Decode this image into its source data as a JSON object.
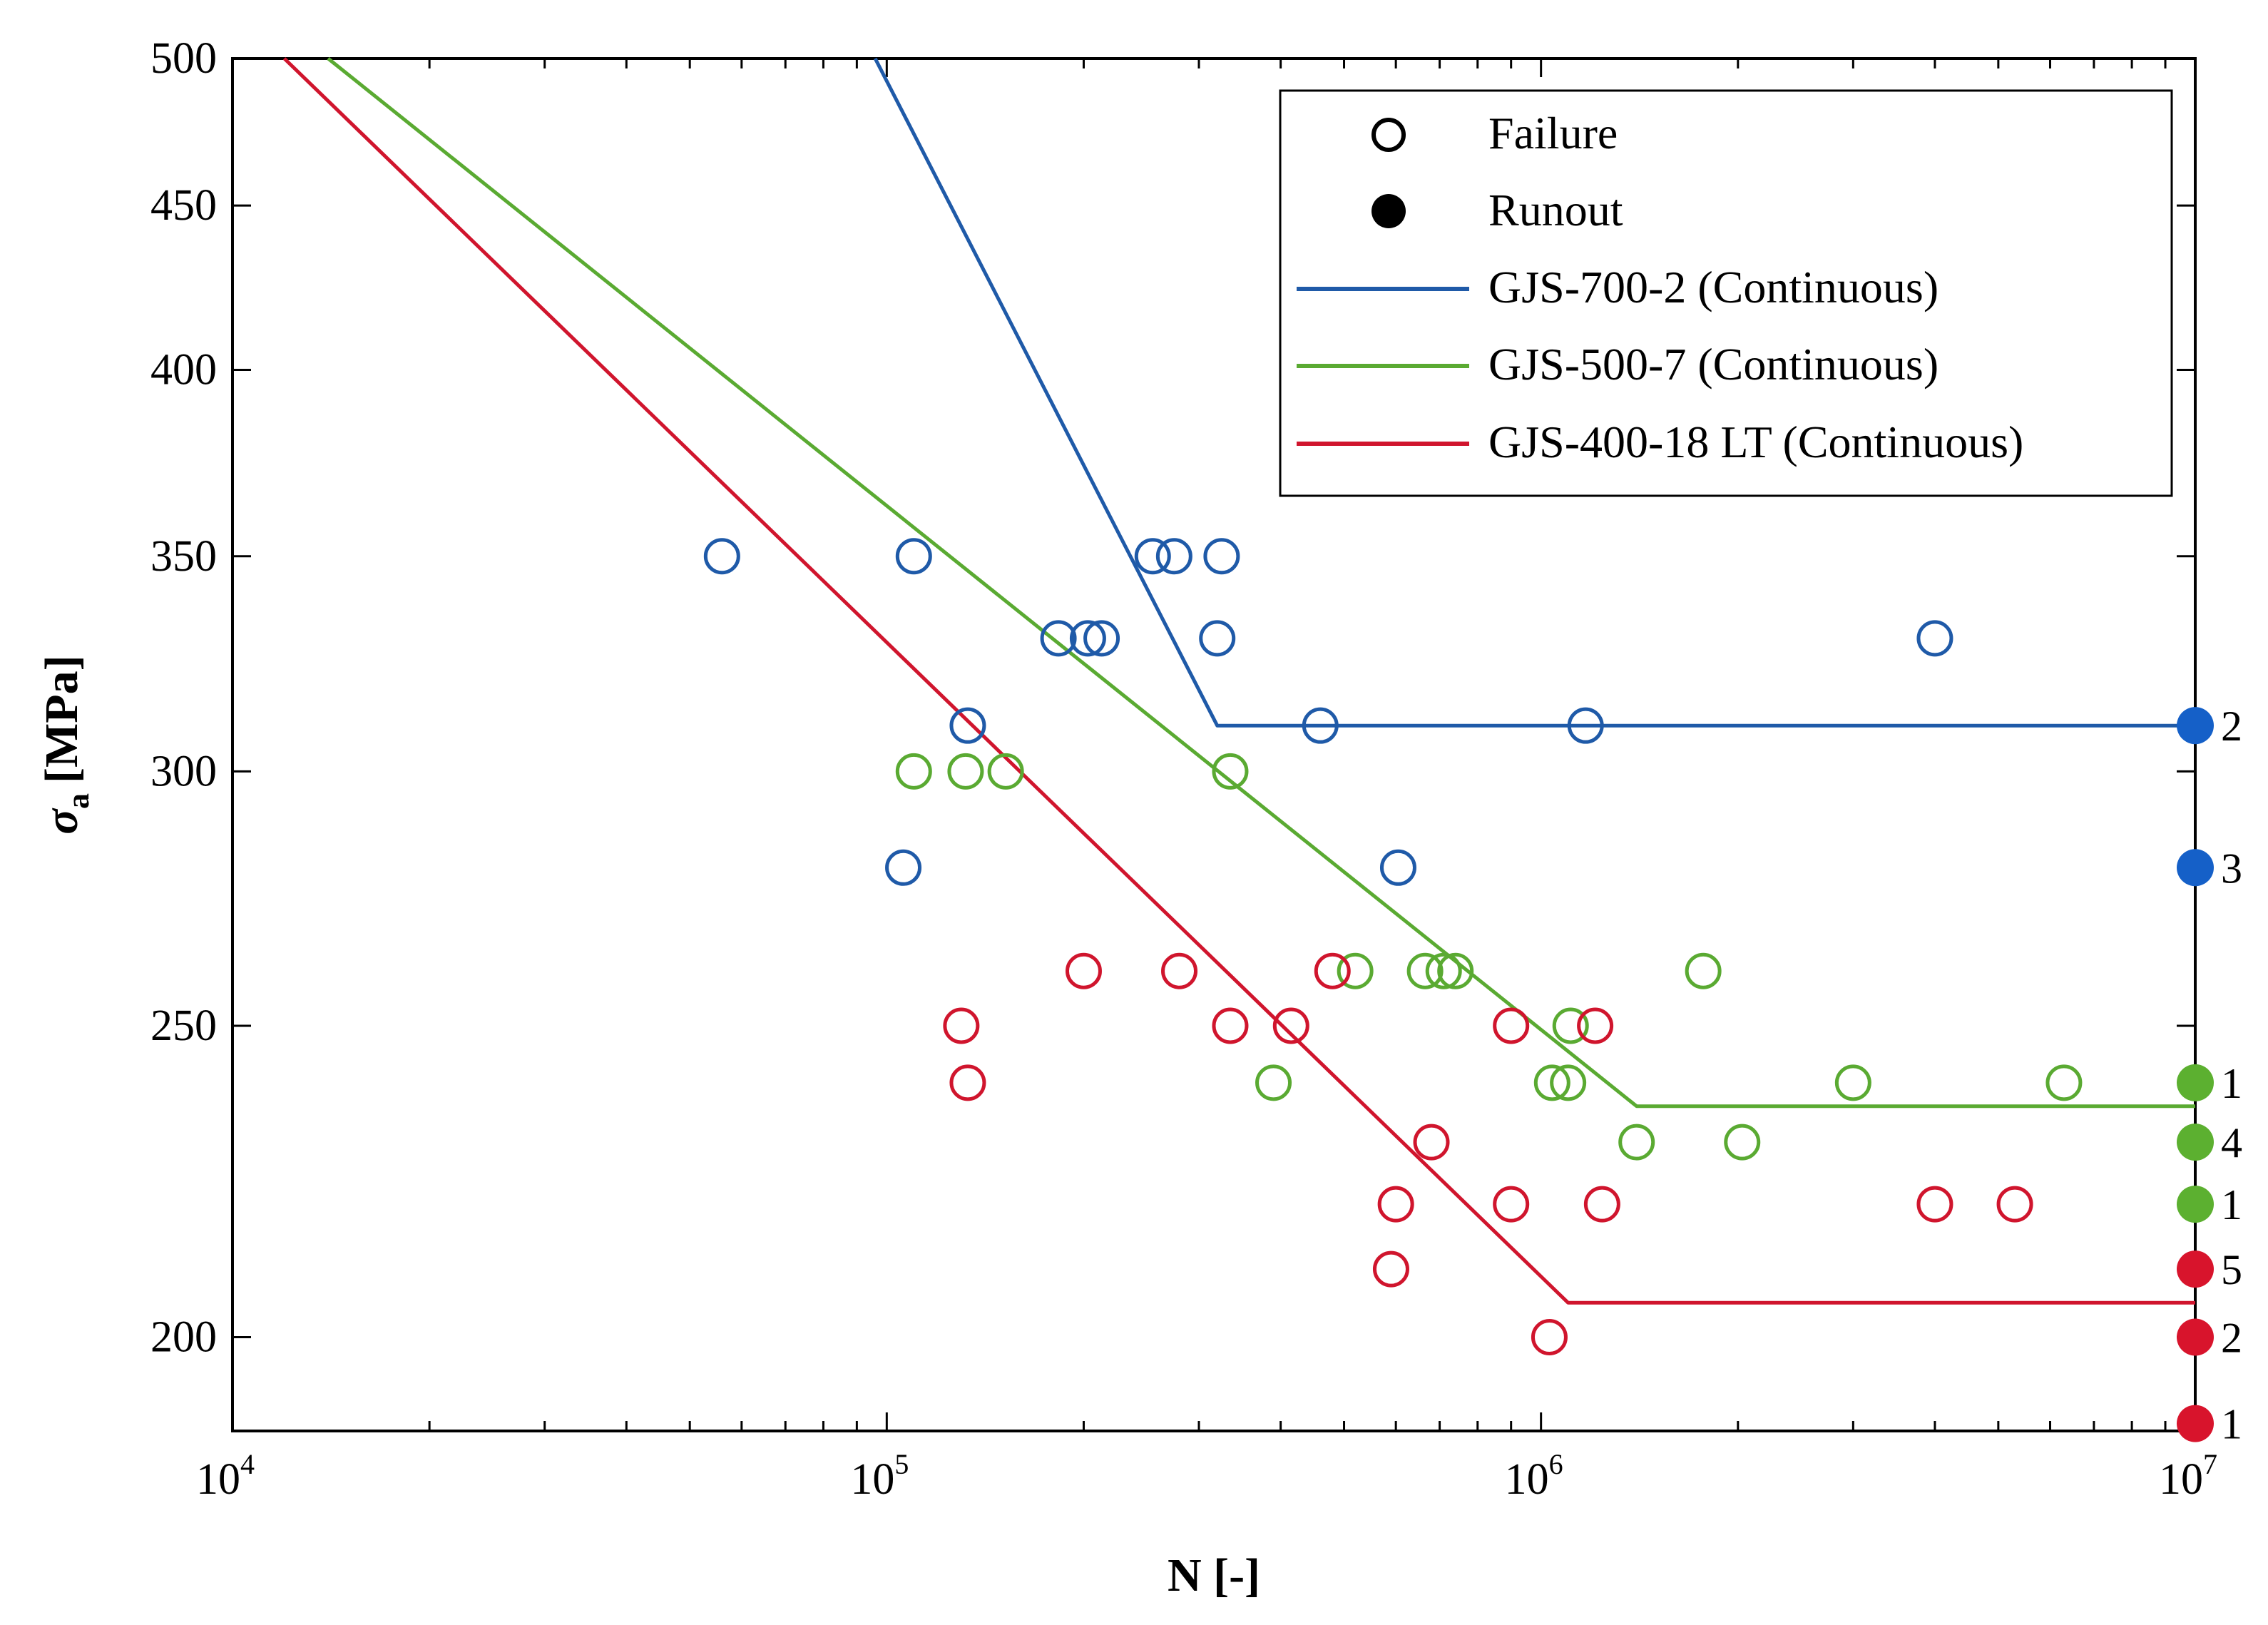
{
  "chart_data": {
    "type": "scatter",
    "xscale": "log",
    "yscale": "log",
    "xlabel": "N [-]",
    "ylabel_symbol": "σ",
    "ylabel_sub": "a",
    "ylabel_unit": "[MPa]",
    "xlim": [
      10000,
      10000000
    ],
    "ylim": [
      187,
      500
    ],
    "x_ticks": [
      {
        "value": 10000,
        "base": "10",
        "exp": "4"
      },
      {
        "value": 100000,
        "base": "10",
        "exp": "5"
      },
      {
        "value": 1000000,
        "base": "10",
        "exp": "6"
      },
      {
        "value": 10000000,
        "base": "10",
        "exp": "7"
      }
    ],
    "y_ticks": [
      {
        "value": 200,
        "label": "200"
      },
      {
        "value": 250,
        "label": "250"
      },
      {
        "value": 300,
        "label": "300"
      },
      {
        "value": 350,
        "label": "350"
      },
      {
        "value": 400,
        "label": "400"
      },
      {
        "value": 450,
        "label": "450"
      },
      {
        "value": 500,
        "label": "500"
      }
    ],
    "legend": {
      "position": "top-right",
      "entries": [
        {
          "marker": "open-circle",
          "label": "Failure"
        },
        {
          "marker": "filled-circle",
          "label": "Runout"
        },
        {
          "marker": "line",
          "color": "#1f5aa8",
          "label": "GJS-700-2 (Continuous)"
        },
        {
          "marker": "line",
          "color": "#5aaa32",
          "label": "GJS-500-7 (Continuous)"
        },
        {
          "marker": "line",
          "color": "#d0152d",
          "label": "GJS-400-18 LT (Continuous)"
        }
      ]
    },
    "series": [
      {
        "name": "GJS-700-2",
        "color": "#1f5aa8",
        "runout_color": "#1560c8",
        "line": [
          [
            96000,
            500
          ],
          [
            320000,
            310
          ],
          [
            10000000,
            310
          ]
        ],
        "failures": [
          [
            56000,
            350
          ],
          [
            110000,
            350
          ],
          [
            255000,
            350
          ],
          [
            275000,
            350
          ],
          [
            325000,
            350
          ],
          [
            183000,
            330
          ],
          [
            203000,
            330
          ],
          [
            213000,
            330
          ],
          [
            320000,
            330
          ],
          [
            4000000,
            330
          ],
          [
            133000,
            310
          ],
          [
            460000,
            310
          ],
          [
            1170000,
            310
          ],
          [
            106000,
            280
          ],
          [
            605000,
            280
          ]
        ],
        "runouts": [
          {
            "y": 310,
            "count": "2"
          },
          {
            "y": 280,
            "count": "3"
          }
        ]
      },
      {
        "name": "GJS-500-7",
        "color": "#5aaa32",
        "runout_color": "#5cb030",
        "line": [
          [
            14000,
            500
          ],
          [
            1400000,
            236
          ],
          [
            10000000,
            236
          ]
        ],
        "failures": [
          [
            110000,
            300
          ],
          [
            132000,
            300
          ],
          [
            152000,
            300
          ],
          [
            335000,
            300
          ],
          [
            520000,
            260
          ],
          [
            665000,
            260
          ],
          [
            710000,
            260
          ],
          [
            740000,
            260
          ],
          [
            1770000,
            260
          ],
          [
            1110000,
            250
          ],
          [
            390000,
            240
          ],
          [
            1040000,
            240
          ],
          [
            1100000,
            240
          ],
          [
            3000000,
            240
          ],
          [
            6300000,
            240
          ],
          [
            1400000,
            230
          ],
          [
            2030000,
            230
          ]
        ],
        "runouts": [
          {
            "y": 240,
            "count": "1"
          },
          {
            "y": 230,
            "count": "4"
          },
          {
            "y": 220,
            "count": "1"
          }
        ]
      },
      {
        "name": "GJS-400-18 LT",
        "color": "#d0152d",
        "runout_color": "#d8142c",
        "line": [
          [
            12000,
            500
          ],
          [
            1100000,
            205
          ],
          [
            10000000,
            205
          ]
        ],
        "failures": [
          [
            200000,
            260
          ],
          [
            280000,
            260
          ],
          [
            480000,
            260
          ],
          [
            130000,
            250
          ],
          [
            335000,
            250
          ],
          [
            415000,
            250
          ],
          [
            900000,
            250
          ],
          [
            1210000,
            250
          ],
          [
            133000,
            240
          ],
          [
            680000,
            230
          ],
          [
            600000,
            220
          ],
          [
            900000,
            220
          ],
          [
            1240000,
            220
          ],
          [
            4000000,
            220
          ],
          [
            5300000,
            220
          ],
          [
            590000,
            210
          ],
          [
            1030000,
            200
          ]
        ],
        "runouts": [
          {
            "y": 210,
            "count": "5"
          },
          {
            "y": 200,
            "count": "2"
          },
          {
            "y": 188,
            "count": "1"
          }
        ]
      }
    ]
  }
}
